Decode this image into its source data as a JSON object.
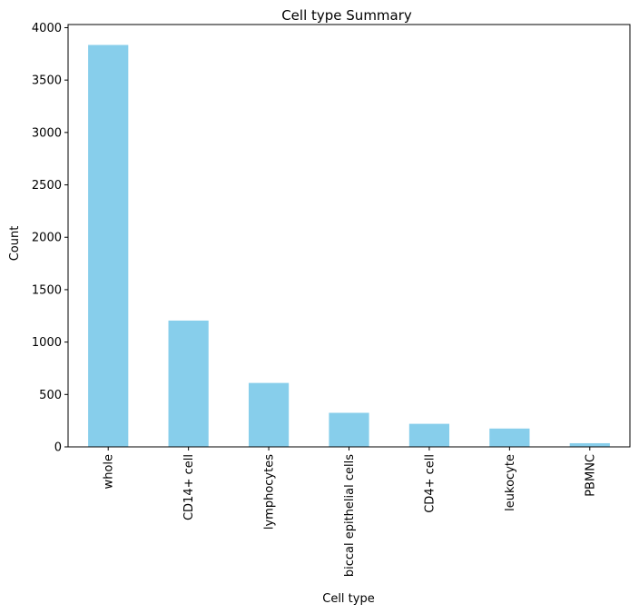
{
  "chart_data": {
    "type": "bar",
    "title": "Cell type Summary",
    "xlabel": "Cell type",
    "ylabel": "Count",
    "categories": [
      "whole",
      "CD14+ cell",
      "lymphocytes",
      "biccal epithelial cells",
      "CD4+ cell",
      "leukocyte",
      "PBMNC"
    ],
    "values": [
      3835,
      1205,
      610,
      325,
      220,
      175,
      35
    ],
    "ylim": [
      0,
      4000
    ],
    "yticks": [
      0,
      500,
      1000,
      1500,
      2000,
      2500,
      3000,
      3500,
      4000
    ],
    "bar_color": "#87CEEB",
    "grid": false,
    "legend": "none"
  }
}
